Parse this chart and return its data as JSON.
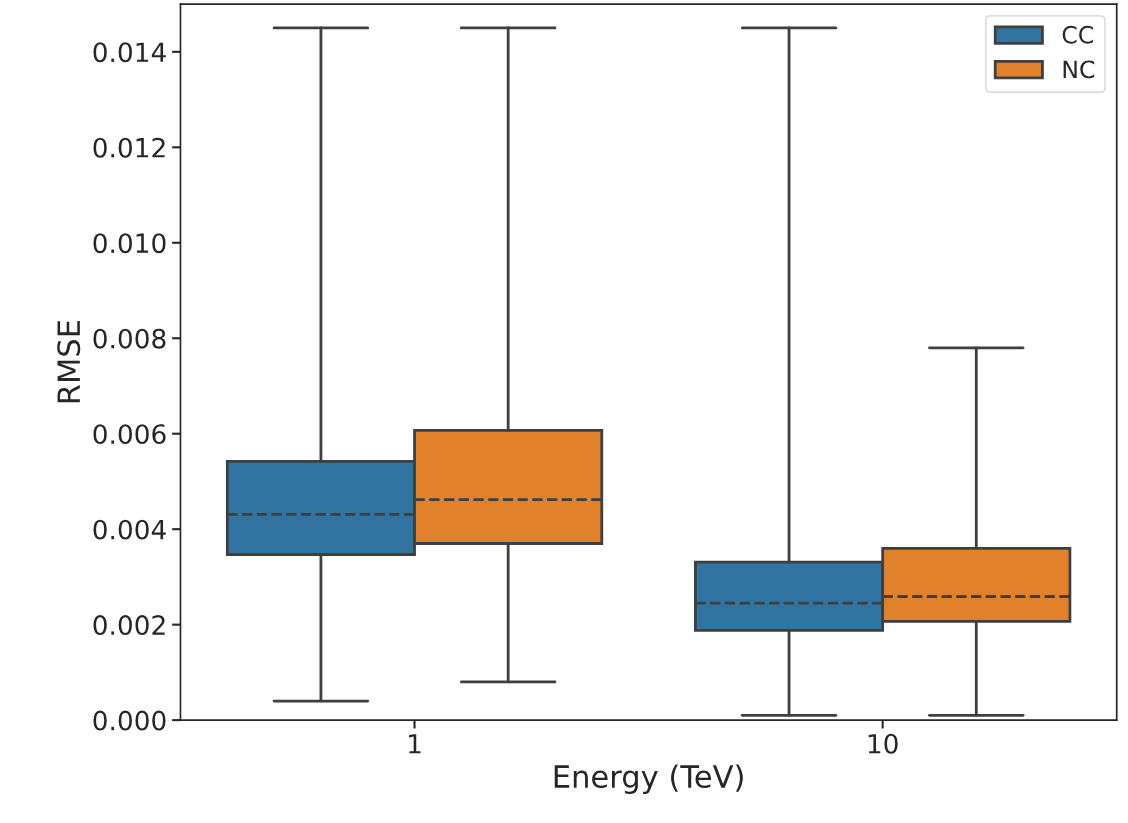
{
  "chart_data": {
    "type": "box",
    "xlabel": "Energy (TeV)",
    "ylabel": "RMSE",
    "categories": [
      "1",
      "10"
    ],
    "series": [
      {
        "name": "CC",
        "color": "#3274a1",
        "boxes": [
          {
            "low": 0.0004,
            "q1": 0.00347,
            "median": 0.00431,
            "q3": 0.00542,
            "high": 0.0145
          },
          {
            "low": 0.0001,
            "q1": 0.00188,
            "median": 0.00245,
            "q3": 0.00331,
            "high": 0.0145
          }
        ]
      },
      {
        "name": "NC",
        "color": "#e1812c",
        "boxes": [
          {
            "low": 0.0008,
            "q1": 0.0037,
            "median": 0.00462,
            "q3": 0.00607,
            "high": 0.0145
          },
          {
            "low": 0.0001,
            "q1": 0.00207,
            "median": 0.00259,
            "q3": 0.0036,
            "high": 0.0078
          }
        ]
      }
    ],
    "ylim": [
      0,
      0.015
    ],
    "yticks": [
      {
        "value": 0,
        "label": "0.000"
      },
      {
        "value": 0.002,
        "label": "0.002"
      },
      {
        "value": 0.004,
        "label": "0.004"
      },
      {
        "value": 0.006,
        "label": "0.006"
      },
      {
        "value": 0.008,
        "label": "0.008"
      },
      {
        "value": 0.01,
        "label": "0.010"
      },
      {
        "value": 0.012,
        "label": "0.012"
      },
      {
        "value": 0.014,
        "label": "0.014"
      }
    ],
    "legend": "top right",
    "grid": false
  }
}
